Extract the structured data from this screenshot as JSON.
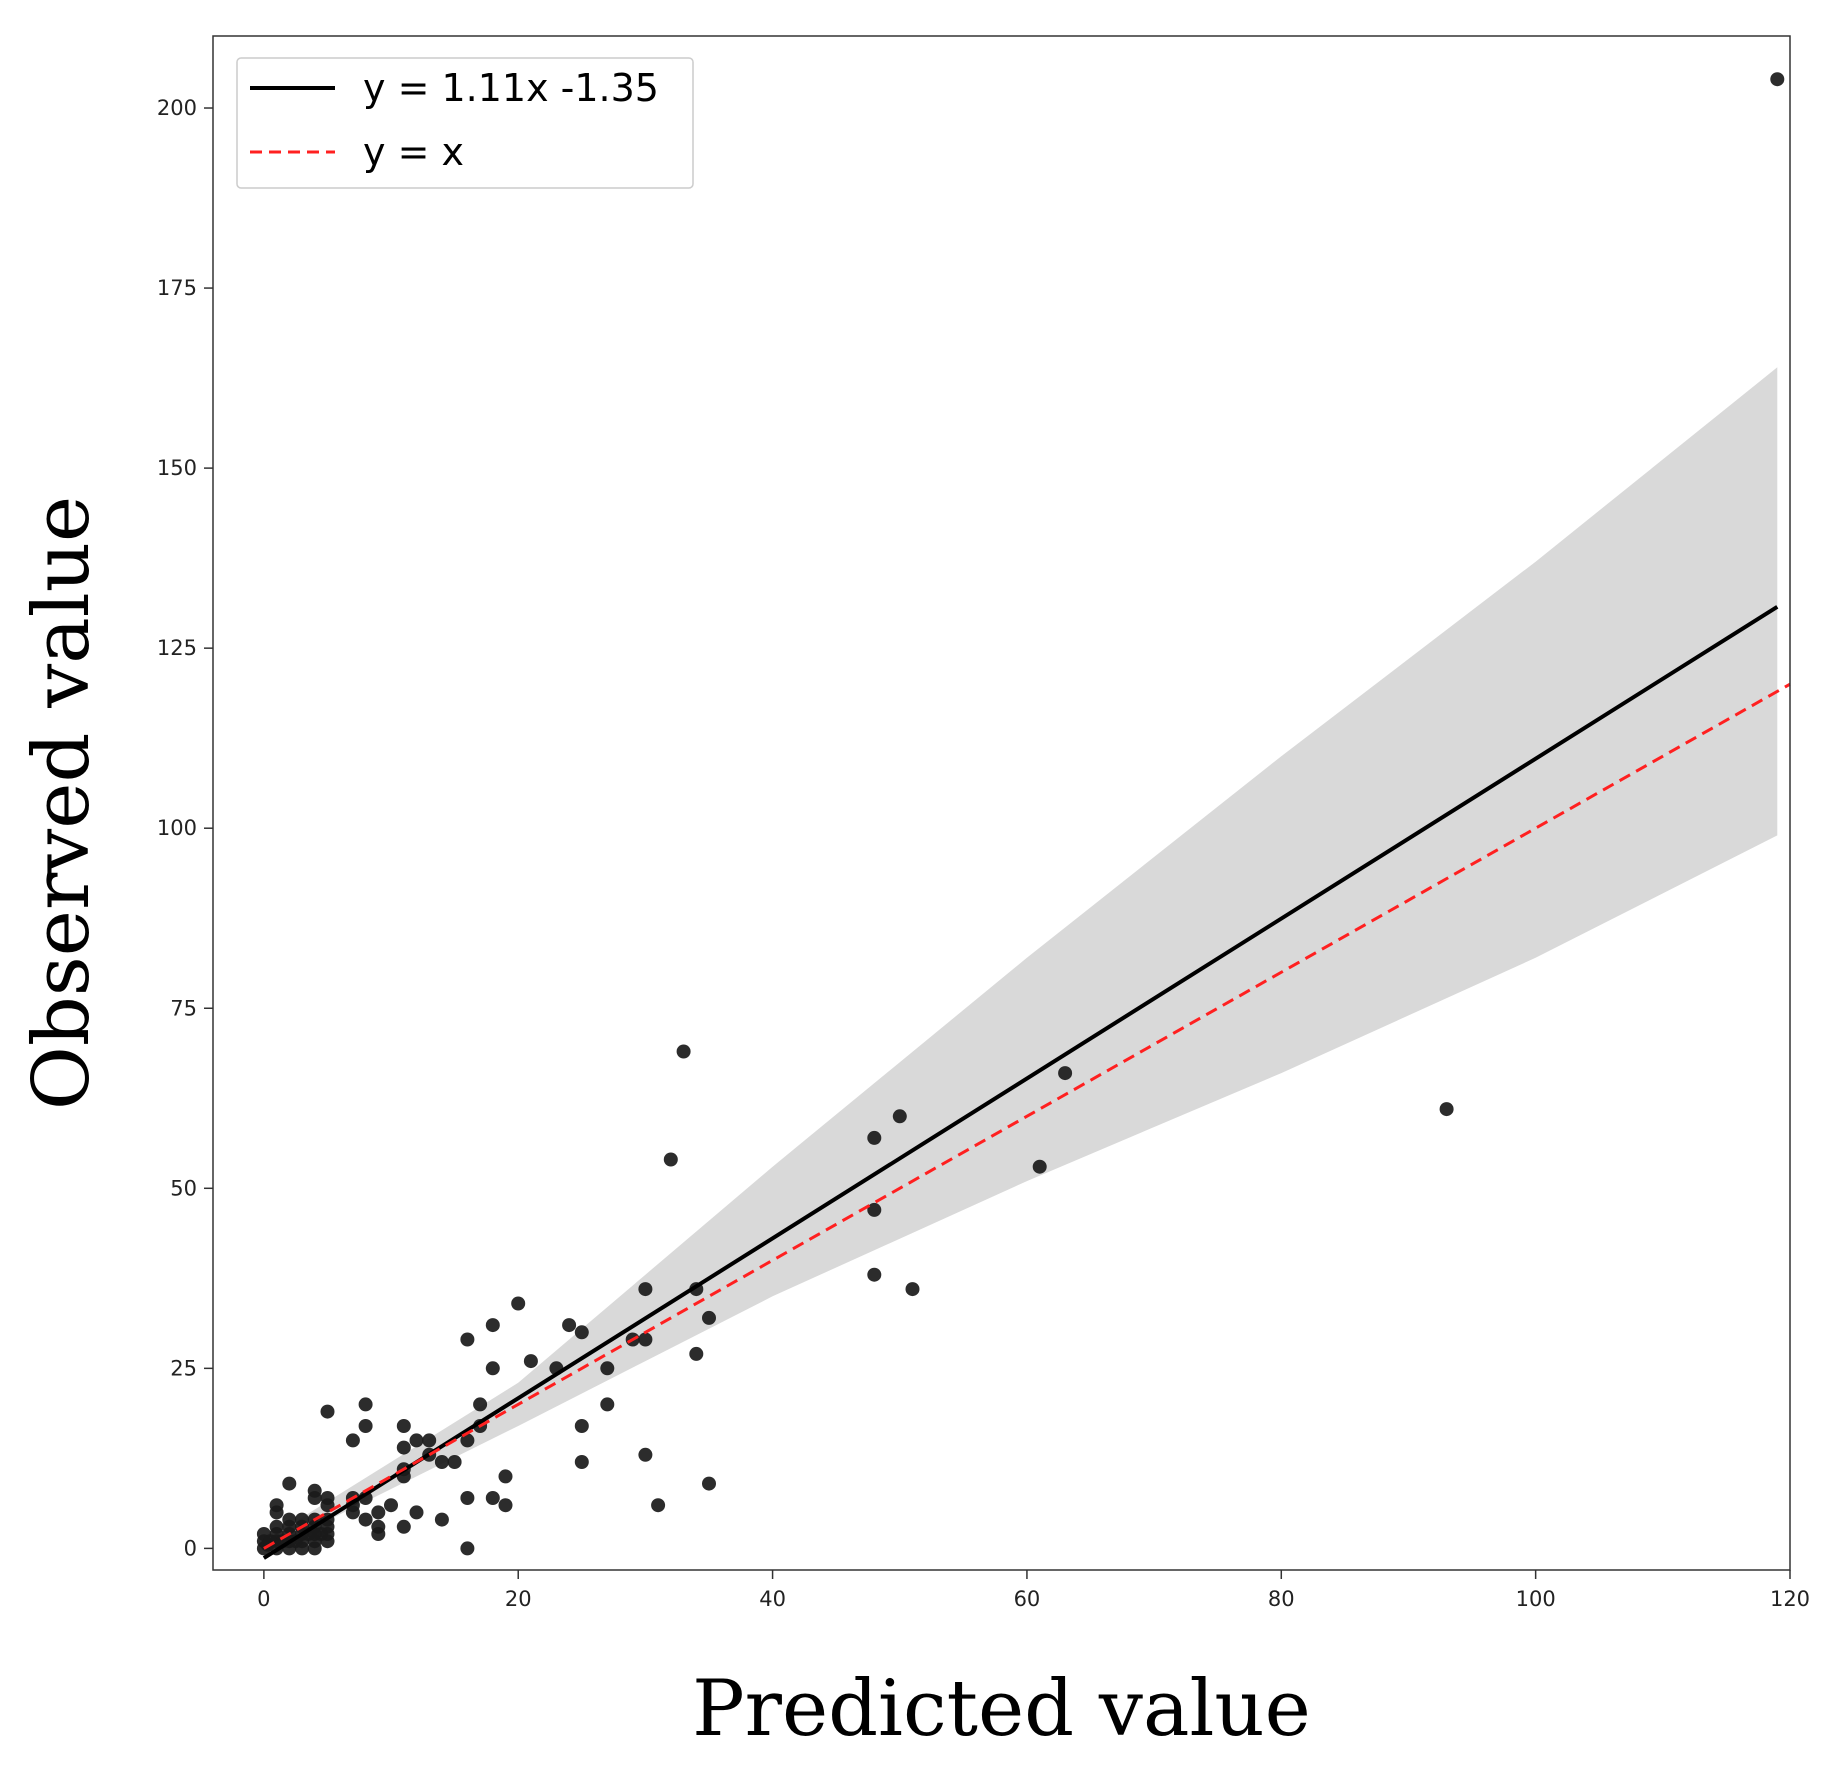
{
  "chart_data": {
    "type": "scatter",
    "xlabel": "Predicted value",
    "ylabel": "Observed value",
    "xlim": [
      -4,
      120
    ],
    "ylim": [
      -3,
      210
    ],
    "xticks": [
      0,
      20,
      40,
      60,
      80,
      100,
      120
    ],
    "yticks": [
      0,
      25,
      50,
      75,
      100,
      125,
      150,
      175,
      200
    ],
    "grid": false,
    "legend_position": "top-left",
    "colors": {
      "points": "#1a1a1a",
      "fit_line": "#000000",
      "identity_line": "#ff2020",
      "confidence_band": "#d9d9d9"
    },
    "legend": [
      {
        "label": "y = 1.11x -1.35",
        "style": "solid",
        "color": "#000000"
      },
      {
        "label": "y = x",
        "style": "dashed",
        "color": "#ff2020"
      }
    ],
    "fit_line": {
      "slope": 1.11,
      "intercept": -1.35,
      "x_range": [
        0,
        119
      ]
    },
    "identity_line": {
      "x_range": [
        0,
        120
      ]
    },
    "confidence_band": {
      "x": [
        0,
        20,
        30,
        40,
        60,
        80,
        100,
        119
      ],
      "lower": [
        -0.5,
        17,
        26,
        35,
        51,
        66,
        82,
        99
      ],
      "upper": [
        1.0,
        23,
        38,
        53,
        82,
        110,
        137,
        164
      ]
    },
    "points": [
      {
        "x": 0,
        "y": 0
      },
      {
        "x": 0,
        "y": 1
      },
      {
        "x": 0,
        "y": 2
      },
      {
        "x": 0.3,
        "y": 0.5
      },
      {
        "x": 0.5,
        "y": 1
      },
      {
        "x": 1,
        "y": 0
      },
      {
        "x": 1,
        "y": 1
      },
      {
        "x": 1,
        "y": 2
      },
      {
        "x": 1,
        "y": 3
      },
      {
        "x": 1,
        "y": 5
      },
      {
        "x": 1,
        "y": 6
      },
      {
        "x": 1.5,
        "y": 1
      },
      {
        "x": 2,
        "y": 0
      },
      {
        "x": 2,
        "y": 1
      },
      {
        "x": 2,
        "y": 2
      },
      {
        "x": 2,
        "y": 3
      },
      {
        "x": 2,
        "y": 4
      },
      {
        "x": 2,
        "y": 9
      },
      {
        "x": 2.5,
        "y": 1
      },
      {
        "x": 3,
        "y": 0
      },
      {
        "x": 3,
        "y": 1
      },
      {
        "x": 3,
        "y": 2
      },
      {
        "x": 3,
        "y": 3
      },
      {
        "x": 3,
        "y": 4
      },
      {
        "x": 3.5,
        "y": 2
      },
      {
        "x": 4,
        "y": 0
      },
      {
        "x": 4,
        "y": 1
      },
      {
        "x": 4,
        "y": 2
      },
      {
        "x": 4,
        "y": 3
      },
      {
        "x": 4,
        "y": 4
      },
      {
        "x": 4,
        "y": 7
      },
      {
        "x": 4,
        "y": 8
      },
      {
        "x": 4.5,
        "y": 2
      },
      {
        "x": 5,
        "y": 1
      },
      {
        "x": 5,
        "y": 2
      },
      {
        "x": 5,
        "y": 3
      },
      {
        "x": 5,
        "y": 4
      },
      {
        "x": 5,
        "y": 6
      },
      {
        "x": 5,
        "y": 7
      },
      {
        "x": 5,
        "y": 19
      },
      {
        "x": 7,
        "y": 5
      },
      {
        "x": 7,
        "y": 6
      },
      {
        "x": 7,
        "y": 7
      },
      {
        "x": 7,
        "y": 15
      },
      {
        "x": 8,
        "y": 4
      },
      {
        "x": 8,
        "y": 7
      },
      {
        "x": 8,
        "y": 17
      },
      {
        "x": 8,
        "y": 20
      },
      {
        "x": 9,
        "y": 2
      },
      {
        "x": 9,
        "y": 3
      },
      {
        "x": 9,
        "y": 5
      },
      {
        "x": 10,
        "y": 6
      },
      {
        "x": 11,
        "y": 3
      },
      {
        "x": 11,
        "y": 10
      },
      {
        "x": 11,
        "y": 11
      },
      {
        "x": 11,
        "y": 14
      },
      {
        "x": 11,
        "y": 17
      },
      {
        "x": 12,
        "y": 5
      },
      {
        "x": 12,
        "y": 15
      },
      {
        "x": 13,
        "y": 13
      },
      {
        "x": 13,
        "y": 15
      },
      {
        "x": 14,
        "y": 4
      },
      {
        "x": 14,
        "y": 12
      },
      {
        "x": 15,
        "y": 12
      },
      {
        "x": 16,
        "y": 0
      },
      {
        "x": 16,
        "y": 7
      },
      {
        "x": 16,
        "y": 15
      },
      {
        "x": 16,
        "y": 29
      },
      {
        "x": 17,
        "y": 17
      },
      {
        "x": 17,
        "y": 20
      },
      {
        "x": 18,
        "y": 7
      },
      {
        "x": 18,
        "y": 25
      },
      {
        "x": 18,
        "y": 31
      },
      {
        "x": 19,
        "y": 6
      },
      {
        "x": 19,
        "y": 10
      },
      {
        "x": 20,
        "y": 34
      },
      {
        "x": 21,
        "y": 26
      },
      {
        "x": 23,
        "y": 25
      },
      {
        "x": 24,
        "y": 31
      },
      {
        "x": 25,
        "y": 12
      },
      {
        "x": 25,
        "y": 17
      },
      {
        "x": 25,
        "y": 30
      },
      {
        "x": 27,
        "y": 20
      },
      {
        "x": 27,
        "y": 25
      },
      {
        "x": 29,
        "y": 29
      },
      {
        "x": 30,
        "y": 13
      },
      {
        "x": 30,
        "y": 29
      },
      {
        "x": 30,
        "y": 36
      },
      {
        "x": 31,
        "y": 6
      },
      {
        "x": 32,
        "y": 54
      },
      {
        "x": 33,
        "y": 69
      },
      {
        "x": 34,
        "y": 27
      },
      {
        "x": 34,
        "y": 36
      },
      {
        "x": 35,
        "y": 9
      },
      {
        "x": 35,
        "y": 32
      },
      {
        "x": 48,
        "y": 38
      },
      {
        "x": 48,
        "y": 47
      },
      {
        "x": 48,
        "y": 57
      },
      {
        "x": 50,
        "y": 60
      },
      {
        "x": 51,
        "y": 36
      },
      {
        "x": 61,
        "y": 53
      },
      {
        "x": 63,
        "y": 66
      },
      {
        "x": 93,
        "y": 61
      },
      {
        "x": 119,
        "y": 204
      }
    ]
  }
}
